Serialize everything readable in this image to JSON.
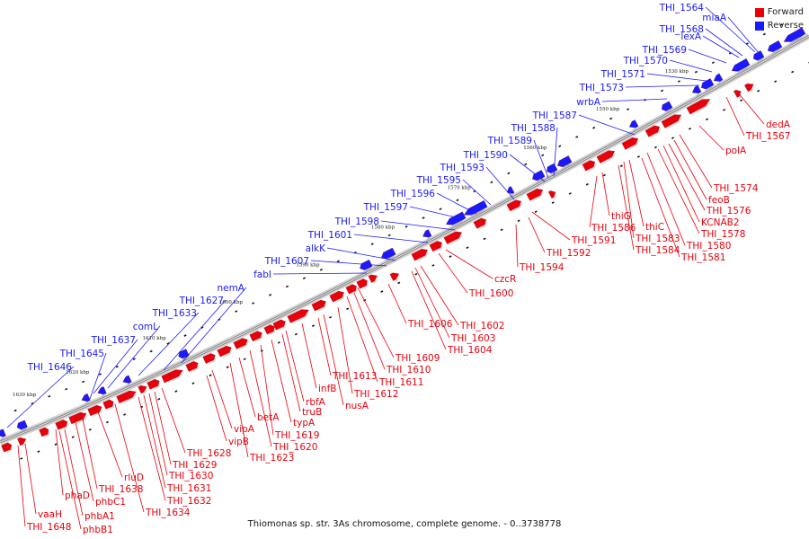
{
  "caption": "Thiomonas sp. str. 3As chromosome, complete genome. - 0..3738778",
  "legend": [
    {
      "label": "Forward",
      "color": "#e8000b"
    },
    {
      "label": "Reverse",
      "color": "#1a1aff"
    }
  ],
  "colors": {
    "forward": "#e8000b",
    "reverse": "#1a1aff",
    "backbone": "#888888"
  },
  "kbp_ticks": [
    "1530 kbp",
    "1550 kbp",
    "1560 kbp",
    "1570 kbp",
    "1580 kbp",
    "1590 kbp",
    "1600 kbp",
    "1610 kbp",
    "1620 kbp",
    "1630 kbp"
  ],
  "reverse_labels": [
    "THI_1564",
    "miaA",
    "THI_1568",
    "lexA",
    "THI_1569",
    "THI_1570",
    "THI_1571",
    "THI_1573",
    "wrbA",
    "THI_1587",
    "THI_1588",
    "THI_1589",
    "THI_1590",
    "THI_1593",
    "THI_1595",
    "THI_1596",
    "THI_1597",
    "THI_1598",
    "THI_1601",
    "alkK",
    "THI_1607",
    "fabI",
    "nemA",
    "THI_1627",
    "THI_1633",
    "comL",
    "THI_1637",
    "THI_1645",
    "THI_1646"
  ],
  "forward_labels": [
    "dedA",
    "THI_1567",
    "polA",
    "THI_1574",
    "feoB",
    "THI_1576",
    "KCNAB2",
    "THI_1578",
    "THI_1580",
    "THI_1581",
    "thiC",
    "THI_1583",
    "THI_1584",
    "thiG",
    "THI_1586",
    "THI_1591",
    "THI_1592",
    "THI_1594",
    "czcR",
    "THI_1600",
    "THI_1602",
    "THI_1603",
    "THI_1604",
    "THI_1606",
    "THI_1609",
    "THI_1610",
    "THI_1611",
    "THI_1612",
    "nusA",
    "THI_1613",
    "infB",
    "rbfA",
    "truB",
    "typA",
    "THI_1619",
    "THI_1620",
    "betA",
    "THI_1623",
    "vipA",
    "vipB",
    "THI_1628",
    "THI_1629",
    "THI_1630",
    "THI_1631",
    "THI_1632",
    "THI_1634",
    "rluD",
    "THI_1638",
    "phbC1",
    "phaD",
    "phbA1",
    "phbB1",
    "vaaH",
    "THI_1648"
  ]
}
